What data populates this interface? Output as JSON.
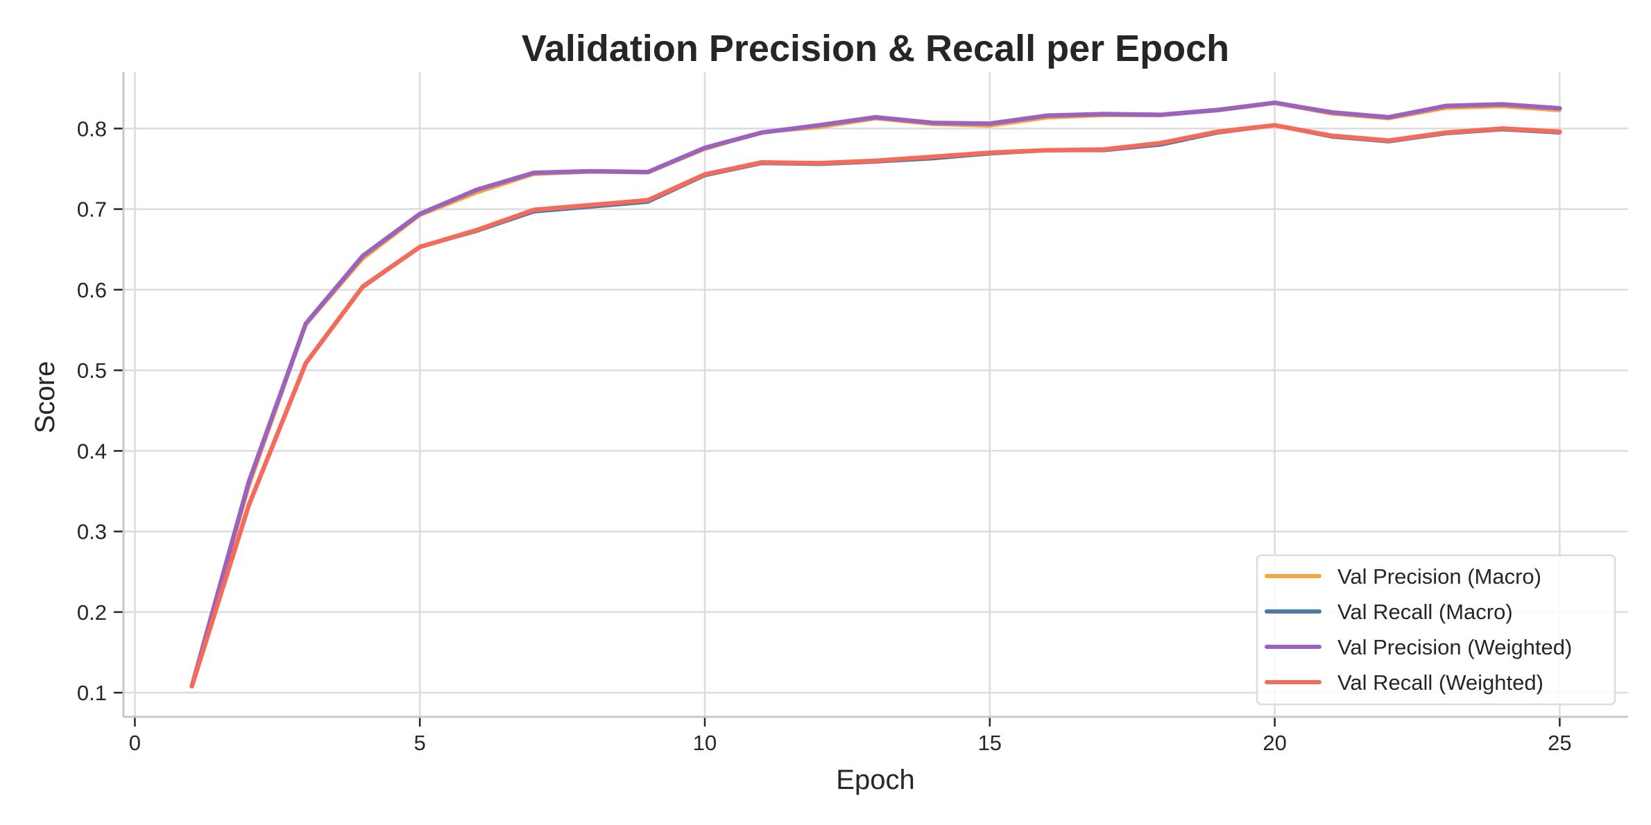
{
  "chart_data": {
    "type": "line",
    "title": "Validation Precision & Recall per Epoch",
    "xlabel": "Epoch",
    "ylabel": "Score",
    "xlim": [
      -0.2,
      26.2
    ],
    "ylim": [
      0.07,
      0.87
    ],
    "xticks": [
      0,
      5,
      10,
      15,
      20,
      25
    ],
    "yticks": [
      0.1,
      0.2,
      0.3,
      0.4,
      0.5,
      0.6,
      0.7,
      0.8
    ],
    "grid": true,
    "legend": "bottom-right",
    "x": [
      1,
      2,
      3,
      4,
      5,
      6,
      7,
      8,
      9,
      10,
      11,
      12,
      13,
      14,
      15,
      16,
      17,
      18,
      19,
      20,
      21,
      22,
      23,
      24,
      25
    ],
    "series": [
      {
        "name": "Val Precision (Macro)",
        "color": "#f5a742",
        "values": [
          0.108,
          0.355,
          0.556,
          0.638,
          0.692,
          0.72,
          0.743,
          0.746,
          0.745,
          0.774,
          0.795,
          0.801,
          0.812,
          0.805,
          0.803,
          0.813,
          0.816,
          0.816,
          0.822,
          0.831,
          0.818,
          0.812,
          0.825,
          0.827,
          0.822
        ]
      },
      {
        "name": "Val Recall (Macro)",
        "color": "#4b7aa5",
        "values": [
          0.108,
          0.33,
          0.508,
          0.602,
          0.652,
          0.672,
          0.696,
          0.702,
          0.708,
          0.741,
          0.756,
          0.755,
          0.758,
          0.762,
          0.768,
          0.772,
          0.772,
          0.779,
          0.794,
          0.803,
          0.789,
          0.783,
          0.793,
          0.798,
          0.794
        ]
      },
      {
        "name": "Val Precision (Weighted)",
        "color": "#9b63bc",
        "values": [
          0.108,
          0.362,
          0.558,
          0.642,
          0.694,
          0.724,
          0.745,
          0.747,
          0.746,
          0.776,
          0.795,
          0.804,
          0.814,
          0.807,
          0.806,
          0.816,
          0.818,
          0.817,
          0.823,
          0.832,
          0.82,
          0.814,
          0.828,
          0.83,
          0.825
        ]
      },
      {
        "name": "Val Recall (Weighted)",
        "color": "#f26b5b",
        "values": [
          0.108,
          0.333,
          0.509,
          0.604,
          0.653,
          0.674,
          0.699,
          0.705,
          0.711,
          0.743,
          0.758,
          0.757,
          0.76,
          0.765,
          0.77,
          0.773,
          0.774,
          0.782,
          0.796,
          0.804,
          0.791,
          0.785,
          0.795,
          0.8,
          0.796
        ]
      }
    ]
  }
}
